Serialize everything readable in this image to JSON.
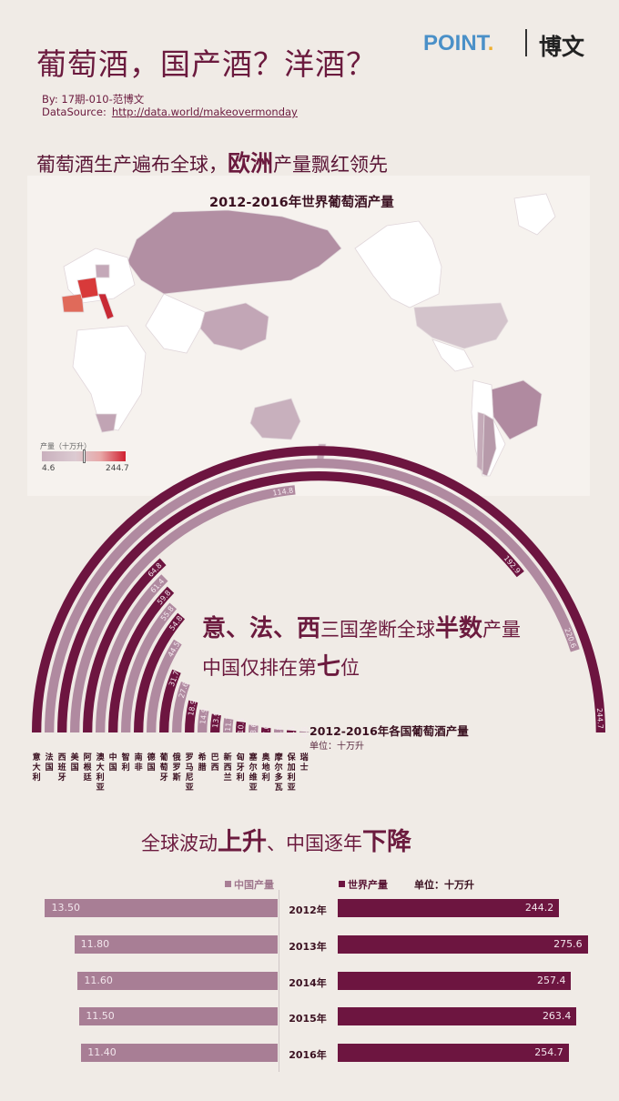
{
  "title": "葡萄酒，国产酒？洋酒？",
  "logo": {
    "point": "POINT",
    "dot": ".",
    "name": "博文"
  },
  "meta": {
    "by": "By:  17期-010-范博文",
    "ds_label": "DataSource:",
    "ds_url": "http://data.world/makeovermonday"
  },
  "section1": {
    "lead": "葡萄酒生产遍布全球，",
    "emph": "欧洲",
    "tail": "产量飘红领先"
  },
  "map": {
    "title": "2012-2016年世界葡萄酒产量",
    "legend_label": "产量（十万升）",
    "legend_min": "4.6",
    "legend_max": "244.7",
    "colors": {
      "low": "#c9b0bd",
      "mid": "#b08aa0",
      "high": "#d02030",
      "land": "#ffffff"
    }
  },
  "section2": {
    "l1_a": "意、法、西",
    "l1_b": "三国垄断全球",
    "l1_c": "半数",
    "l1_d": "产量",
    "l2_a": "中国仅排在第",
    "l2_b": "七",
    "l2_c": "位"
  },
  "chart_data": [
    {
      "type": "bar",
      "title": "2012-2016年各国葡萄酒产量",
      "unit": "单位：十万升",
      "categories": [
        "意大利",
        "法国",
        "西班牙",
        "美国",
        "阿根廷",
        "澳大利亚",
        "中国",
        "智利",
        "南非",
        "德国",
        "葡萄牙",
        "俄罗斯",
        "罗马尼亚",
        "希腊",
        "巴西",
        "新西兰",
        "匈牙利",
        "塞尔维亚",
        "奥地利",
        "摩尔多瓦",
        "保加利亚",
        "瑞士"
      ],
      "values": [
        244.7,
        220.6,
        192.9,
        114.8,
        64.8,
        61.4,
        59.8,
        55.8,
        54.8,
        44.5,
        31.7,
        27.6,
        18.9,
        14.9,
        13.5,
        11.7,
        10.5,
        8.6,
        7.0,
        5.8,
        5.5,
        4.6
      ],
      "shown_labels": [
        "244.7",
        "220.6",
        "192.9",
        "114.8",
        "64.8",
        "61.4",
        "59.8",
        "55.8",
        "54.8",
        "44.5",
        "31.7",
        "27.6",
        "18.9",
        "14.9",
        "13.5",
        "11.7",
        "10.5",
        "8.6",
        "7.0",
        "5.8",
        "5.5",
        "4.6"
      ],
      "colors": {
        "dark": "#6d1540",
        "light": "#b08aa0"
      }
    },
    {
      "type": "bar",
      "title": "",
      "unit": "单位：十万升",
      "categories": [
        "2012年",
        "2013年",
        "2014年",
        "2015年",
        "2016年"
      ],
      "series": [
        {
          "name": "中国产量",
          "values": [
            13.5,
            11.8,
            11.6,
            11.5,
            11.4
          ],
          "labels": [
            "13.50",
            "11.80",
            "11.60",
            "11.50",
            "11.40"
          ],
          "color": "#a87e95"
        },
        {
          "name": "世界产量",
          "values": [
            244.2,
            275.6,
            257.4,
            263.4,
            254.7
          ],
          "labels": [
            "244.2",
            "275.6",
            "257.4",
            "263.4",
            "254.7"
          ],
          "color": "#6d1540"
        }
      ]
    }
  ],
  "section3": {
    "a": "全球波动",
    "b": "上升",
    "c": "、中国逐年",
    "d": "下降"
  }
}
